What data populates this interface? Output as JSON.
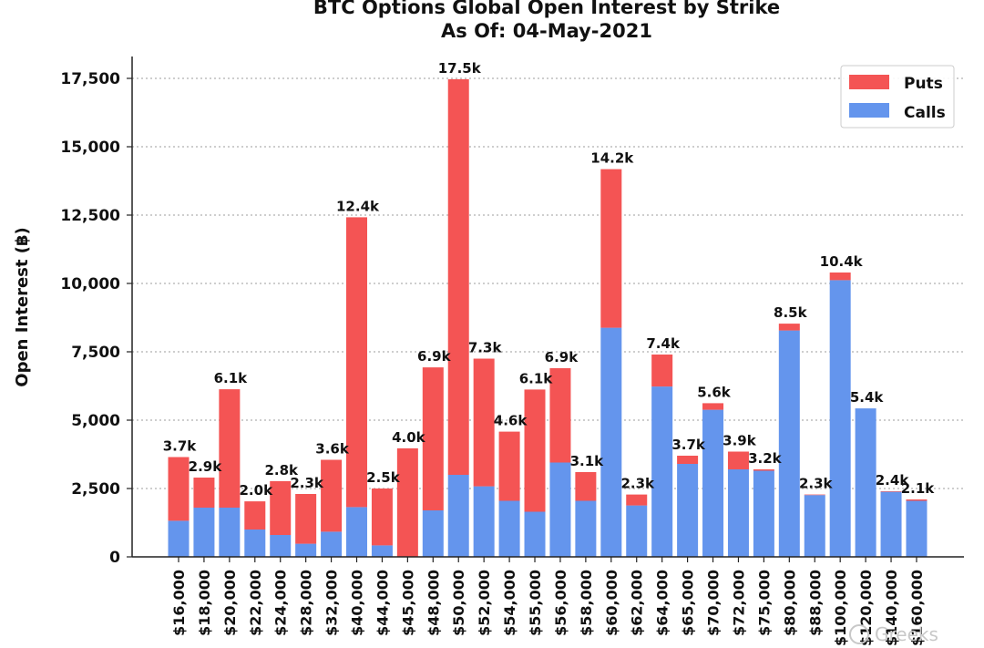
{
  "chart_data": {
    "type": "bar",
    "stacked": true,
    "title": "BTC Options Global Open Interest by Strike",
    "subtitle": "As Of: 04-May-2021",
    "xlabel": "",
    "ylabel": "Open Interest (฿)",
    "ylim": [
      0,
      18300
    ],
    "yticks": [
      0,
      2500,
      5000,
      7500,
      10000,
      12500,
      15000,
      17500
    ],
    "ytick_labels": [
      "0",
      "2,500",
      "5,000",
      "7,500",
      "10,000",
      "12,500",
      "15,000",
      "17,500"
    ],
    "grid": "horizontal dotted",
    "legend_position": "top-right",
    "categories": [
      "$16,000",
      "$18,000",
      "$20,000",
      "$22,000",
      "$24,000",
      "$28,000",
      "$32,000",
      "$40,000",
      "$44,000",
      "$45,000",
      "$48,000",
      "$50,000",
      "$52,000",
      "$54,000",
      "$55,000",
      "$56,000",
      "$58,000",
      "$60,000",
      "$62,000",
      "$64,000",
      "$65,000",
      "$70,000",
      "$72,000",
      "$75,000",
      "$80,000",
      "$88,000",
      "$100,000",
      "$120,000",
      "$140,000",
      "$160,000"
    ],
    "series": [
      {
        "name": "Calls",
        "color": "#6495ed",
        "values": [
          1320,
          1800,
          1800,
          1000,
          800,
          480,
          920,
          1820,
          420,
          0,
          1700,
          3000,
          2580,
          2050,
          1650,
          3450,
          2050,
          8380,
          1880,
          6230,
          3400,
          5380,
          3200,
          3150,
          8280,
          2260,
          10120,
          5430,
          2380,
          2050
        ]
      },
      {
        "name": "Puts",
        "color": "#f45454",
        "values": [
          2330,
          1100,
          4330,
          1030,
          1970,
          1820,
          2630,
          10600,
          2080,
          3970,
          5230,
          14470,
          4670,
          2530,
          4470,
          3450,
          1050,
          5800,
          400,
          1170,
          300,
          240,
          650,
          50,
          250,
          20,
          280,
          0,
          20,
          50
        ]
      }
    ],
    "data_labels": [
      "3.7k",
      "2.9k",
      "6.1k",
      "2.0k",
      "2.8k",
      "2.3k",
      "3.6k",
      "12.4k",
      "2.5k",
      "4.0k",
      "6.9k",
      "17.5k",
      "7.3k",
      "4.6k",
      "6.1k",
      "6.9k",
      "3.1k",
      "14.2k",
      "2.3k",
      "7.4k",
      "3.7k",
      "5.6k",
      "3.9k",
      "3.2k",
      "8.5k",
      "2.3k",
      "10.4k",
      "5.4k",
      "2.4k",
      "2.1k"
    ],
    "watermark": "Greeks"
  }
}
